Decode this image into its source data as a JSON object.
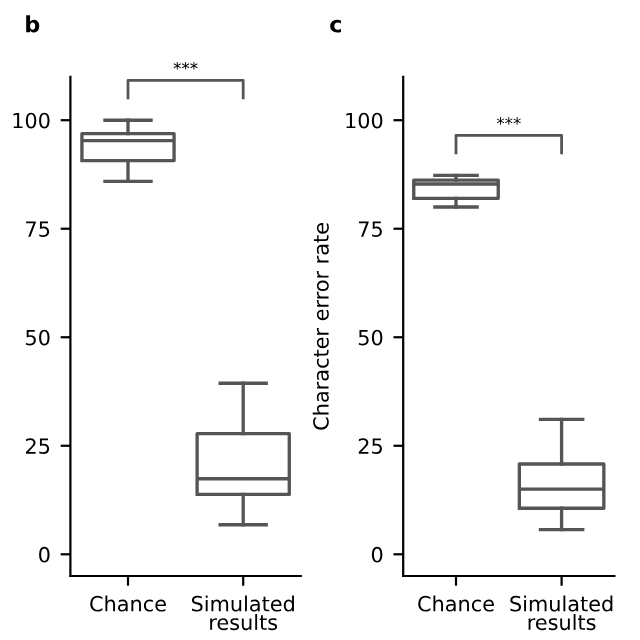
{
  "chart_data": [
    {
      "type": "box",
      "title": "b",
      "categories": [
        "Chance",
        "Simulated\nresults"
      ],
      "color": "#555555",
      "boxes": [
        {
          "low": 85.9,
          "q1": 90.7,
          "median": 95.3,
          "q3": 96.9,
          "high": 100
        },
        {
          "low": 6.8,
          "q1": 13.8,
          "median": 17.4,
          "q3": 27.8,
          "high": 39.4
        }
      ],
      "ylim": [
        -5,
        110
      ],
      "yticks": [
        0,
        25,
        50,
        75,
        100
      ],
      "grid": false,
      "annotations": [
        "***"
      ]
    },
    {
      "type": "box",
      "title": "c",
      "ylabel": "Character error rate",
      "categories": [
        "Chance",
        "Simulated\nresults"
      ],
      "color": "#555555",
      "boxes": [
        {
          "low": 80.0,
          "q1": 82.0,
          "median": 85.3,
          "q3": 86.2,
          "high": 87.3
        },
        {
          "low": 5.7,
          "q1": 10.6,
          "median": 15.0,
          "q3": 20.8,
          "high": 31.1
        }
      ],
      "ylim": [
        -5,
        110
      ],
      "yticks": [
        0,
        25,
        50,
        75,
        100
      ],
      "grid": false,
      "annotations": [
        "***"
      ]
    }
  ]
}
